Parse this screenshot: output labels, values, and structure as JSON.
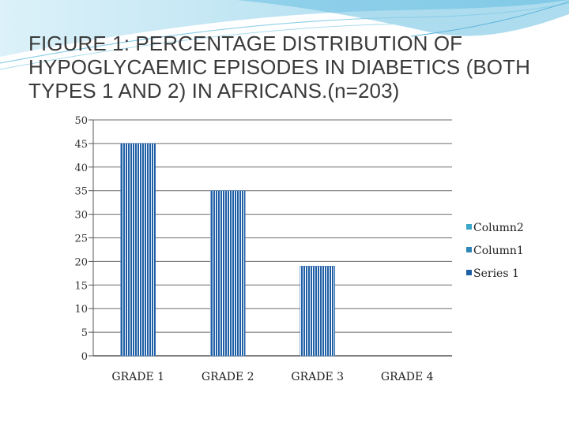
{
  "slide": {
    "title": "FIGURE 1: PERCENTAGE DISTRIBUTION OF HYPOGLYCAEMIC EPISODES IN DIABETICS   (BOTH TYPES 1 AND 2) IN AFRICANS.(n=203)"
  },
  "chart_data": {
    "type": "bar",
    "categories": [
      "GRADE 1",
      "GRADE 2",
      "GRADE 3",
      "GRADE 4"
    ],
    "series": [
      {
        "name": "Series 1",
        "values": [
          45,
          35,
          19,
          0
        ],
        "color": "#1f5fa6"
      },
      {
        "name": "Column1",
        "values": [
          0,
          0,
          0,
          0
        ],
        "color": "#2f86b8"
      },
      {
        "name": "Column2",
        "values": [
          0,
          0,
          0,
          0
        ],
        "color": "#3aa6c8"
      }
    ],
    "legend_order": [
      "Column2",
      "Column1",
      "Series 1"
    ],
    "yticks": [
      "0",
      "5",
      "10",
      "15",
      "20",
      "25",
      "30",
      "35",
      "40",
      "45",
      "50"
    ],
    "ylim": [
      0,
      50
    ],
    "grid": true,
    "legend_position": "right"
  }
}
